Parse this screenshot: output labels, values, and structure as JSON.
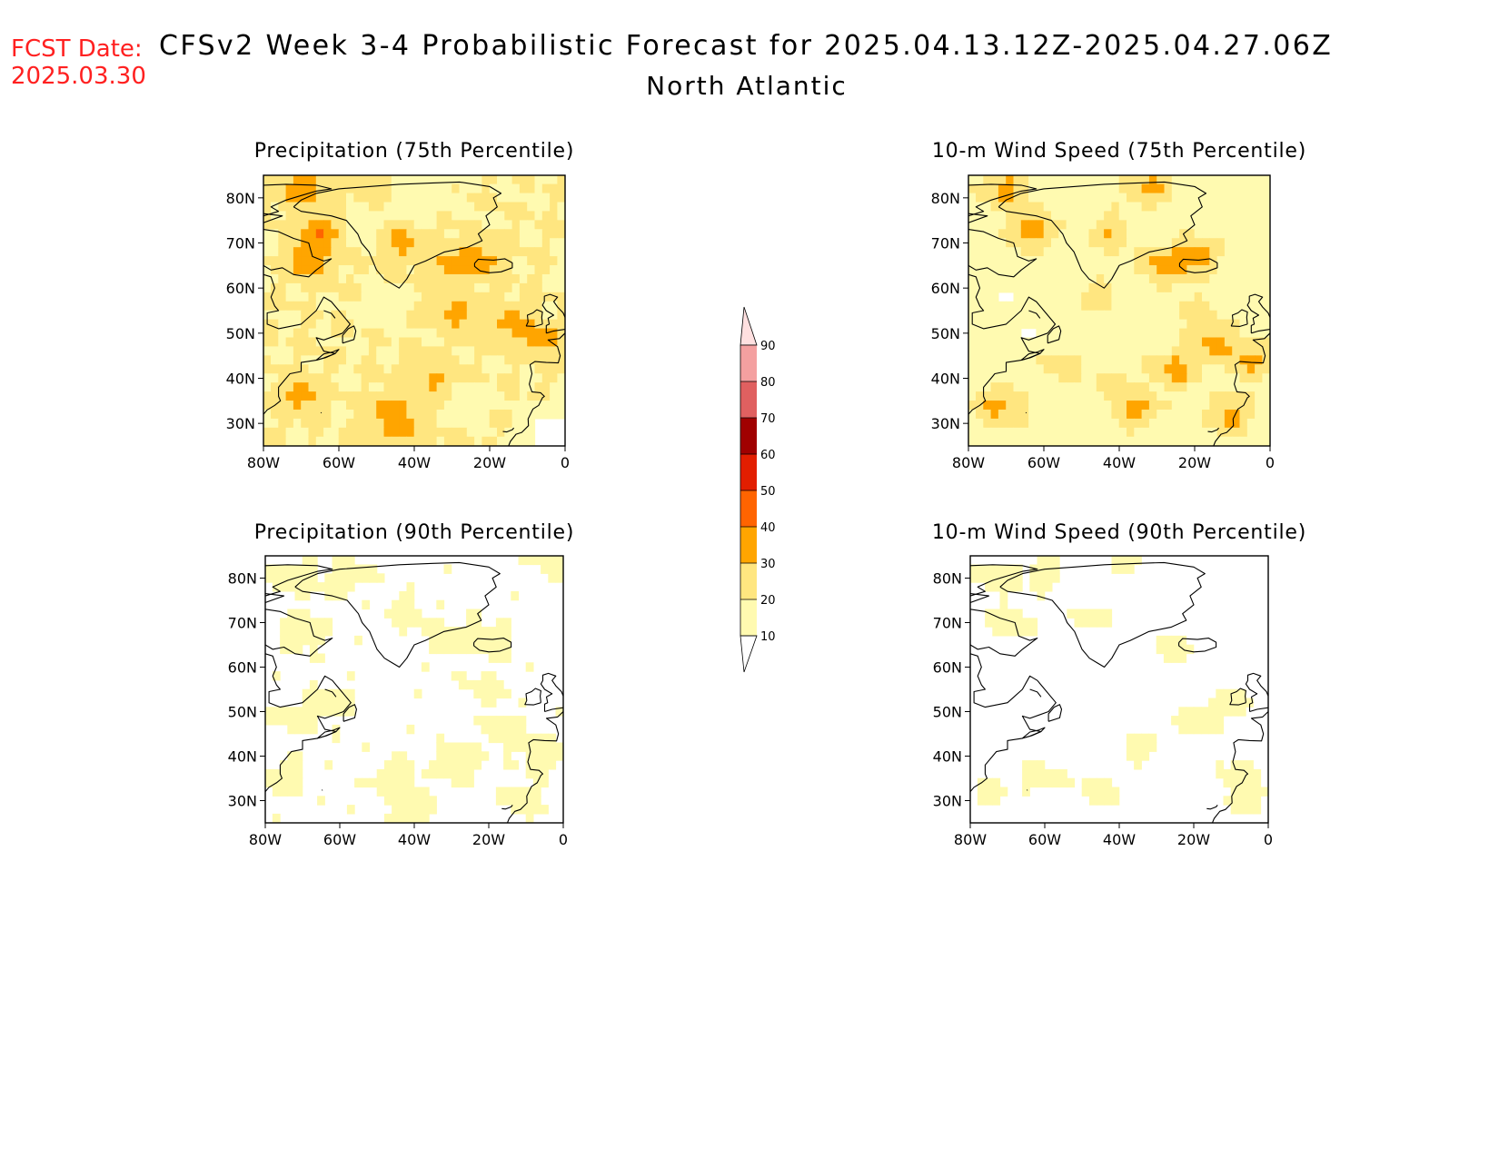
{
  "header": {
    "fcst_label": "FCST Date:",
    "fcst_date": "2025.03.30",
    "title": "CFSv2 Week 3-4 Probabilistic Forecast for 2025.04.13.12Z-2025.04.27.06Z",
    "region": "North Atlantic"
  },
  "colors": {
    "levels": [
      "#ffffff",
      "#fffab0",
      "#ffe680",
      "#ffa500",
      "#ff6400",
      "#e21e00",
      "#a00000",
      "#e06060",
      "#f4a0a0",
      "#ffe0e0"
    ],
    "coast": "#000000",
    "frame": "#000000"
  },
  "colorbar": {
    "ticks": [
      "10",
      "20",
      "30",
      "40",
      "50",
      "60",
      "70",
      "80",
      "90"
    ],
    "ends": "triangular"
  },
  "axes": {
    "lat_ticks": [
      "80N",
      "70N",
      "60N",
      "50N",
      "40N",
      "30N"
    ],
    "lon_ticks": [
      "80W",
      "60W",
      "40W",
      "20W",
      "0"
    ],
    "lat_values": [
      80,
      70,
      60,
      50,
      40,
      30
    ],
    "lon_values": [
      -80,
      -60,
      -40,
      -20,
      0
    ],
    "lat_range": [
      25,
      85
    ],
    "lon_range": [
      -80,
      0
    ]
  },
  "panels": [
    {
      "title": "Precipitation (75th Percentile)",
      "variable": "precipitation",
      "percentile": 75,
      "field": {
        "base": 20,
        "blobs": [
          {
            "lon": -70,
            "lat": 82,
            "value": 40
          },
          {
            "lon": -65,
            "lat": 72,
            "value": 40
          },
          {
            "lon": -68,
            "lat": 66,
            "value": 40
          },
          {
            "lon": -70,
            "lat": 36,
            "value": 35
          },
          {
            "lon": -46,
            "lat": 33,
            "value": 35
          },
          {
            "lon": -43,
            "lat": 28,
            "value": 35
          },
          {
            "lon": -14,
            "lat": 52,
            "value": 35
          },
          {
            "lon": -6,
            "lat": 48,
            "value": 35
          },
          {
            "lon": -30,
            "lat": 65,
            "value": 35
          },
          {
            "lon": -43,
            "lat": 70,
            "value": 35
          },
          {
            "lon": -22,
            "lat": 66,
            "value": 35
          },
          {
            "lon": -28,
            "lat": 54,
            "value": 35
          },
          {
            "lon": -35,
            "lat": 40,
            "value": 32
          },
          {
            "lon": -48,
            "lat": 55,
            "value": 15
          },
          {
            "lon": -25,
            "lat": 35,
            "value": 15
          },
          {
            "lon": -55,
            "lat": 72,
            "value": 15
          },
          {
            "lon": -40,
            "lat": 77,
            "value": 15
          },
          {
            "lon": -50,
            "lat": 82,
            "value": 24
          },
          {
            "lon": -35,
            "lat": 82,
            "value": 15
          },
          {
            "lon": -5,
            "lat": 30,
            "value": 12
          },
          {
            "lon": -4,
            "lat": 27,
            "value": 5
          }
        ]
      }
    },
    {
      "title": "10-m Wind Speed (75th Percentile)",
      "variable": "wind_speed",
      "percentile": 75,
      "field": {
        "base": 17,
        "blobs": [
          {
            "lon": -70,
            "lat": 82,
            "value": 35
          },
          {
            "lon": -32,
            "lat": 82,
            "value": 34
          },
          {
            "lon": -63,
            "lat": 73,
            "value": 38
          },
          {
            "lon": -42,
            "lat": 72,
            "value": 30
          },
          {
            "lon": -28,
            "lat": 65,
            "value": 36
          },
          {
            "lon": -20,
            "lat": 67,
            "value": 36
          },
          {
            "lon": -15,
            "lat": 48,
            "value": 36
          },
          {
            "lon": -25,
            "lat": 42,
            "value": 36
          },
          {
            "lon": -10,
            "lat": 32,
            "value": 36
          },
          {
            "lon": -72,
            "lat": 34,
            "value": 34
          },
          {
            "lon": -35,
            "lat": 33,
            "value": 34
          },
          {
            "lon": -45,
            "lat": 58,
            "value": 24
          },
          {
            "lon": -20,
            "lat": 55,
            "value": 24
          },
          {
            "lon": -55,
            "lat": 42,
            "value": 24
          },
          {
            "lon": -40,
            "lat": 38,
            "value": 24
          },
          {
            "lon": -5,
            "lat": 44,
            "value": 34
          },
          {
            "lon": -33,
            "lat": 73,
            "value": 12
          },
          {
            "lon": -70,
            "lat": 57,
            "value": 10
          },
          {
            "lon": -64,
            "lat": 50,
            "value": 10
          },
          {
            "lon": -30,
            "lat": 30,
            "value": 14
          },
          {
            "lon": -2,
            "lat": 30,
            "value": 12
          }
        ]
      }
    },
    {
      "title": "Precipitation (90th Percentile)",
      "variable": "precipitation",
      "percentile": 90,
      "field": {
        "base": 8,
        "blobs": [
          {
            "lon": -72,
            "lat": 80,
            "value": 18
          },
          {
            "lon": -58,
            "lat": 80,
            "value": 15
          },
          {
            "lon": -70,
            "lat": 68,
            "value": 16
          },
          {
            "lon": -42,
            "lat": 72,
            "value": 14
          },
          {
            "lon": -30,
            "lat": 66,
            "value": 15
          },
          {
            "lon": -20,
            "lat": 66,
            "value": 15
          },
          {
            "lon": -62,
            "lat": 52,
            "value": 15
          },
          {
            "lon": -72,
            "lat": 48,
            "value": 14
          },
          {
            "lon": -45,
            "lat": 35,
            "value": 16
          },
          {
            "lon": -40,
            "lat": 28,
            "value": 16
          },
          {
            "lon": -28,
            "lat": 38,
            "value": 15
          },
          {
            "lon": -15,
            "lat": 45,
            "value": 15
          },
          {
            "lon": -20,
            "lat": 55,
            "value": 14
          },
          {
            "lon": -5,
            "lat": 40,
            "value": 15
          },
          {
            "lon": -10,
            "lat": 30,
            "value": 14
          },
          {
            "lon": -2,
            "lat": 84,
            "value": 14
          },
          {
            "lon": -75,
            "lat": 35,
            "value": 14
          }
        ]
      }
    },
    {
      "title": "10-m Wind Speed (90th Percentile)",
      "variable": "wind_speed",
      "percentile": 90,
      "field": {
        "base": 7,
        "blobs": [
          {
            "lon": -72,
            "lat": 80,
            "value": 16
          },
          {
            "lon": -60,
            "lat": 81,
            "value": 14
          },
          {
            "lon": -70,
            "lat": 70,
            "value": 15
          },
          {
            "lon": -25,
            "lat": 64,
            "value": 14
          },
          {
            "lon": -10,
            "lat": 52,
            "value": 15
          },
          {
            "lon": -20,
            "lat": 48,
            "value": 15
          },
          {
            "lon": -35,
            "lat": 42,
            "value": 14
          },
          {
            "lon": -60,
            "lat": 35,
            "value": 15
          },
          {
            "lon": -45,
            "lat": 32,
            "value": 14
          },
          {
            "lon": -8,
            "lat": 35,
            "value": 15
          },
          {
            "lon": -5,
            "lat": 30,
            "value": 14
          },
          {
            "lon": -75,
            "lat": 32,
            "value": 14
          },
          {
            "lon": -48,
            "lat": 70,
            "value": 12
          },
          {
            "lon": -38,
            "lat": 83,
            "value": 12
          }
        ]
      }
    }
  ],
  "coastlines": {
    "greenland": [
      [
        -72,
        78
      ],
      [
        -70,
        79.5
      ],
      [
        -66,
        81
      ],
      [
        -60,
        82
      ],
      [
        -52,
        82.5
      ],
      [
        -44,
        83
      ],
      [
        -35,
        83.3
      ],
      [
        -28,
        83.5
      ],
      [
        -20,
        82.5
      ],
      [
        -17,
        81
      ],
      [
        -19,
        80
      ],
      [
        -18,
        78
      ],
      [
        -21,
        76
      ],
      [
        -20,
        74
      ],
      [
        -23,
        72
      ],
      [
        -22,
        70.5
      ],
      [
        -26,
        69
      ],
      [
        -32,
        68
      ],
      [
        -37,
        66
      ],
      [
        -40,
        65
      ],
      [
        -42,
        62
      ],
      [
        -44,
        60
      ],
      [
        -46,
        61
      ],
      [
        -48,
        62
      ],
      [
        -50,
        64
      ],
      [
        -51,
        66
      ],
      [
        -52,
        68
      ],
      [
        -54,
        70
      ],
      [
        -55,
        72
      ],
      [
        -58,
        75
      ],
      [
        -62,
        76
      ],
      [
        -66,
        76.5
      ],
      [
        -70,
        77
      ],
      [
        -72,
        78
      ]
    ],
    "north_america": [
      [
        -80,
        63
      ],
      [
        -78,
        62.5
      ],
      [
        -77,
        60
      ],
      [
        -78,
        58
      ],
      [
        -77,
        56
      ],
      [
        -76,
        55
      ],
      [
        -79,
        54.5
      ],
      [
        -79,
        52
      ],
      [
        -76,
        51
      ],
      [
        -70,
        52
      ],
      [
        -66,
        55
      ],
      [
        -64,
        58
      ],
      [
        -62,
        57
      ],
      [
        -60,
        55
      ],
      [
        -57,
        52
      ],
      [
        -59,
        50
      ],
      [
        -64,
        48.5
      ],
      [
        -66,
        49
      ],
      [
        -64,
        46
      ],
      [
        -61,
        45.5
      ],
      [
        -64,
        44.5
      ],
      [
        -66,
        44
      ],
      [
        -70,
        43.5
      ],
      [
        -70,
        41.5
      ],
      [
        -73,
        41
      ],
      [
        -74,
        40
      ],
      [
        -76,
        38
      ],
      [
        -76,
        36
      ],
      [
        -75.5,
        35
      ],
      [
        -77,
        34
      ],
      [
        -79,
        33
      ],
      [
        -80,
        32
      ]
    ],
    "newfoundland": [
      [
        -59,
        47.8
      ],
      [
        -56,
        48.6
      ],
      [
        -55.5,
        50.5
      ],
      [
        -56,
        51.6
      ],
      [
        -57.5,
        51
      ],
      [
        -59,
        49.5
      ],
      [
        -59,
        47.8
      ]
    ],
    "nova_scotia": [
      [
        -66,
        44
      ],
      [
        -63.5,
        44.6
      ],
      [
        -61,
        45.5
      ],
      [
        -60,
        46.4
      ],
      [
        -61.8,
        45.8
      ],
      [
        -64,
        45.4
      ],
      [
        -66,
        44
      ]
    ],
    "baffin": [
      [
        -80,
        73
      ],
      [
        -76,
        72.5
      ],
      [
        -72,
        71
      ],
      [
        -68,
        70
      ],
      [
        -67,
        67
      ],
      [
        -64,
        66
      ],
      [
        -62,
        66.5
      ],
      [
        -66,
        64
      ],
      [
        -68,
        62.5
      ],
      [
        -72,
        63
      ],
      [
        -75,
        64.5
      ],
      [
        -78,
        64
      ],
      [
        -80,
        65
      ]
    ],
    "ellesmere": [
      [
        -80,
        76
      ],
      [
        -76,
        77
      ],
      [
        -78,
        78
      ],
      [
        -74,
        79.5
      ],
      [
        -70,
        80.5
      ],
      [
        -66,
        81.5
      ],
      [
        -62,
        82
      ],
      [
        -66,
        82.8
      ],
      [
        -74,
        83
      ],
      [
        -80,
        82.8
      ]
    ],
    "devon": [
      [
        -80,
        74.5
      ],
      [
        -75,
        76
      ],
      [
        -80,
        76.5
      ]
    ],
    "labrador_lake": [
      [
        -64,
        55
      ],
      [
        -62,
        54.4
      ],
      [
        -61,
        53.3
      ]
    ],
    "iceland": [
      [
        -24,
        65.5
      ],
      [
        -23,
        66.4
      ],
      [
        -19,
        66.2
      ],
      [
        -16,
        66.5
      ],
      [
        -14,
        65.6
      ],
      [
        -14,
        64.5
      ],
      [
        -17,
        63.6
      ],
      [
        -20,
        63.4
      ],
      [
        -22.5,
        63.8
      ],
      [
        -24,
        64.8
      ],
      [
        -24,
        65.5
      ]
    ],
    "great_britain": [
      [
        -5,
        50
      ],
      [
        -3,
        50.5
      ],
      [
        1,
        51
      ],
      [
        1.7,
        52.6
      ],
      [
        0,
        53.5
      ],
      [
        -0.5,
        54.5
      ],
      [
        -2,
        55.8
      ],
      [
        -3,
        57
      ],
      [
        -2,
        58
      ],
      [
        -4,
        58.6
      ],
      [
        -5.5,
        58.2
      ],
      [
        -5.5,
        57
      ],
      [
        -6,
        56.2
      ],
      [
        -5,
        55
      ],
      [
        -3,
        54
      ],
      [
        -4.5,
        53.3
      ],
      [
        -4.2,
        52
      ],
      [
        -5,
        51.7
      ],
      [
        -5,
        50
      ]
    ],
    "ireland": [
      [
        -6,
        52
      ],
      [
        -6.2,
        53.5
      ],
      [
        -6,
        54.7
      ],
      [
        -7.5,
        55.2
      ],
      [
        -8.5,
        54.5
      ],
      [
        -10,
        54
      ],
      [
        -9.8,
        52.5
      ],
      [
        -10.3,
        51.6
      ],
      [
        -8,
        51.5
      ],
      [
        -6,
        52
      ]
    ],
    "iberia_africa": [
      [
        0,
        50
      ],
      [
        -1.5,
        48.8
      ],
      [
        -4.5,
        48.5
      ],
      [
        -2,
        47
      ],
      [
        -1.3,
        45
      ],
      [
        -1.8,
        43.4
      ],
      [
        -5,
        43.5
      ],
      [
        -8,
        43.7
      ],
      [
        -9.3,
        43
      ],
      [
        -8.8,
        41
      ],
      [
        -9.5,
        38.7
      ],
      [
        -8.8,
        37
      ],
      [
        -6.5,
        36.8
      ],
      [
        -5.5,
        36
      ],
      [
        -6,
        35.7
      ],
      [
        -7,
        34
      ],
      [
        -8.5,
        33.2
      ],
      [
        -9.8,
        31
      ],
      [
        -9.7,
        29.5
      ],
      [
        -11.5,
        28
      ],
      [
        -13,
        27.6
      ],
      [
        -14.5,
        26
      ],
      [
        -15,
        25
      ]
    ],
    "canaries": [
      [
        -16.5,
        28.2
      ],
      [
        -15.5,
        28.1
      ],
      [
        -14,
        28.6
      ],
      [
        -13.6,
        29
      ]
    ],
    "bermuda": [
      [
        -64.8,
        32.3
      ],
      [
        -64.6,
        32.4
      ]
    ]
  }
}
